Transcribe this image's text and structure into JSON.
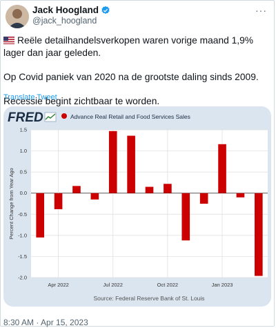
{
  "tweet": {
    "author_name": "Jack Hoogland",
    "author_handle": "@jack_hoogland",
    "more_icon": "more-icon",
    "paragraphs": [
      "Reële detailhandelsverkopen waren vorige maand 1,9% lager dan jaar geleden.",
      "Op Covid paniek van 2020 na de grootste daling sinds 2009.",
      "Recessie begint zichtbaar te worden."
    ],
    "flag_icon": "us-flag-icon",
    "translate_label": "Translate Tweet",
    "timestamp": "8:30 AM · Apr 15, 2023"
  },
  "chart_data": {
    "type": "bar",
    "logo": "FRED",
    "title": "Advance Real Retail and Food Services Sales",
    "ylabel": "Percent Change from Year Ago",
    "source": "Source: Federal Reserve Bank of St. Louis",
    "ylim": [
      -2.0,
      1.5
    ],
    "yticks": [
      1.5,
      1.0,
      0.5,
      0.0,
      -0.5,
      -1.0,
      -1.5,
      -2.0
    ],
    "ytick_labels": [
      "1.5",
      "1.0",
      "0.5",
      "0.0",
      "-0.5",
      "-1.0",
      "-1.5",
      "-2.0"
    ],
    "categories": [
      "2022-03",
      "2022-04",
      "2022-05",
      "2022-06",
      "2022-07",
      "2022-08",
      "2022-09",
      "2022-10",
      "2022-11",
      "2022-12",
      "2023-01",
      "2023-02",
      "2023-03"
    ],
    "values": [
      -1.05,
      -0.38,
      0.17,
      -0.15,
      1.47,
      1.36,
      0.15,
      0.22,
      -1.12,
      -0.25,
      1.16,
      -0.1,
      -1.96
    ],
    "xtick_labels": [
      {
        "label": "Apr 2022",
        "index": 1
      },
      {
        "label": "Jul 2022",
        "index": 4
      },
      {
        "label": "Oct 2022",
        "index": 7
      },
      {
        "label": "Jan 2023",
        "index": 10
      }
    ],
    "grid": true,
    "series_color": "#cc0000"
  }
}
